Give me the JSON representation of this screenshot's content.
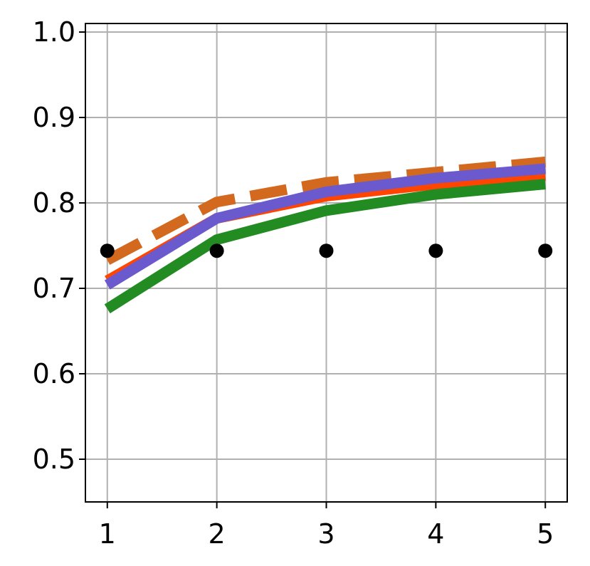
{
  "chart_data": {
    "type": "line",
    "title": "",
    "xlabel": "",
    "ylabel": "",
    "x": [
      1,
      2,
      3,
      4,
      5
    ],
    "xlim": [
      0.8,
      5.2
    ],
    "ylim": [
      0.45,
      1.01
    ],
    "xticks": [
      1,
      2,
      3,
      4,
      5
    ],
    "xtick_labels": [
      "1",
      "2",
      "3",
      "4",
      "5"
    ],
    "yticks": [
      0.5,
      0.6,
      0.7,
      0.8,
      0.9,
      1.0
    ],
    "ytick_labels": [
      "0.5",
      "0.6",
      "0.7",
      "0.8",
      "0.9",
      "1.0"
    ],
    "grid": true,
    "series": [
      {
        "values": [
          0.733,
          0.801,
          0.824,
          0.836,
          0.848
        ],
        "color": "#d2691e",
        "style": "dashed",
        "marker": "none"
      },
      {
        "values": [
          0.709,
          0.782,
          0.808,
          0.822,
          0.832
        ],
        "color": "#ff4500",
        "style": "solid",
        "marker": "none"
      },
      {
        "values": [
          0.676,
          0.757,
          0.791,
          0.81,
          0.822
        ],
        "color": "#228b22",
        "style": "solid",
        "marker": "none"
      },
      {
        "values": [
          0.704,
          0.782,
          0.813,
          0.829,
          0.84
        ],
        "color": "#6a5acd",
        "style": "solid",
        "marker": "none"
      },
      {
        "values": [
          0.744,
          0.744,
          0.744,
          0.744,
          0.744
        ],
        "color": "#000000",
        "style": "none",
        "marker": "circle"
      }
    ]
  }
}
